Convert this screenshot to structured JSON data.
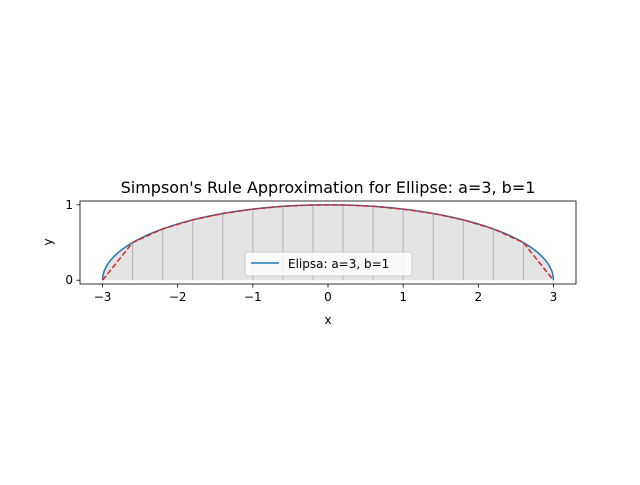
{
  "chart_data": {
    "type": "area",
    "title": "Simpson's Rule Approximation for Ellipse: a=3, b=1",
    "xlabel": "x",
    "ylabel": "y",
    "xlim": [
      -3.3,
      3.3
    ],
    "ylim": [
      -0.05,
      1.05
    ],
    "xticks": [
      -3,
      -2,
      -1,
      0,
      1,
      2,
      3
    ],
    "xtick_labels": [
      "−3",
      "−2",
      "−1",
      "0",
      "1",
      "2",
      "3"
    ],
    "yticks": [
      0,
      1
    ],
    "ytick_labels": [
      "0",
      "1"
    ],
    "grid": false,
    "legend_position": "lower center",
    "ellipse": {
      "a": 3,
      "b": 1
    },
    "series": [
      {
        "name": "Elipsa: a=3, b=1",
        "kind": "line",
        "style": "solid",
        "color": "#1f77b4"
      },
      {
        "kind": "line",
        "style": "dashed",
        "color": "#d62728"
      }
    ],
    "simpson_nodes_x": [
      -3.0,
      -2.6,
      -2.2,
      -1.8,
      -1.4,
      -1.0,
      -0.6,
      -0.2,
      0.2,
      0.6,
      1.0,
      1.4,
      1.8,
      2.2,
      2.6,
      3.0
    ],
    "fill_color": "#e4e4e4",
    "node_line_color": "#b3b3b3"
  }
}
